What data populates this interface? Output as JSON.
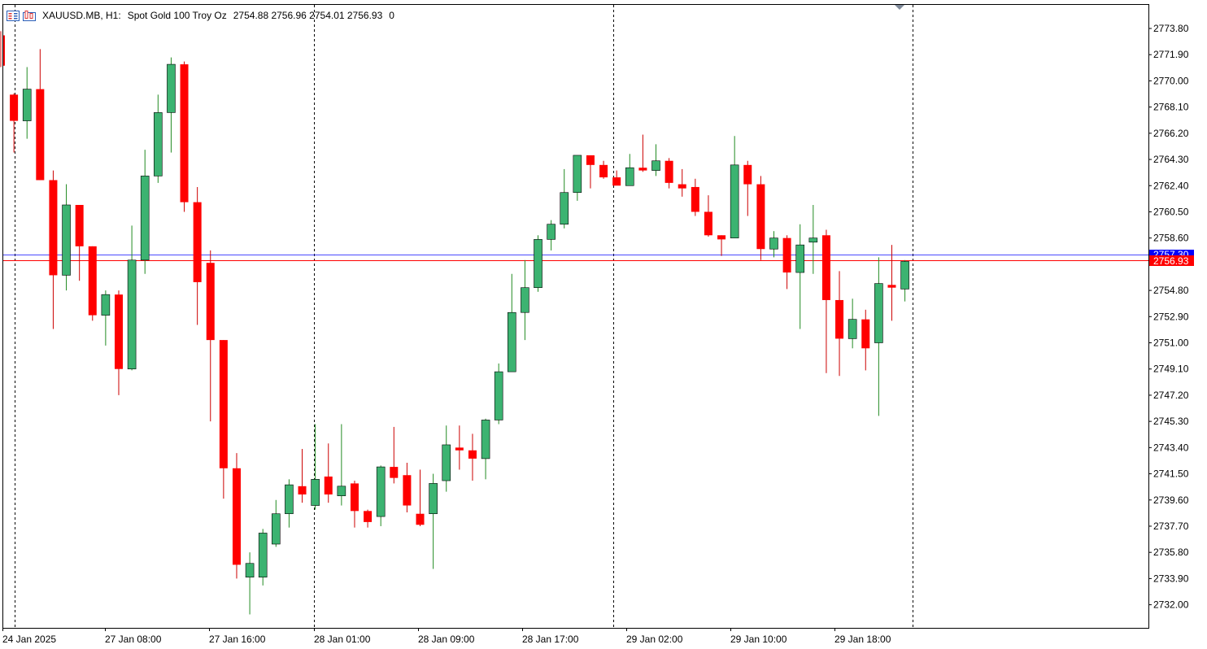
{
  "header": {
    "symbol": "XAUUSD.MB, H1:",
    "description": "Spot Gold 100 Troy Oz",
    "ohlc": "2754.88 2756.96 2754.01 2756.93",
    "volume": "0"
  },
  "price_labels": {
    "bid": "2757.30",
    "last": "2756.93",
    "bid_color": "#0000ff",
    "last_color": "#ff0000"
  },
  "colors": {
    "bull": "#3cb371",
    "bear": "#ff0000",
    "wick_bull": "#228b22",
    "wick_bear": "#cc0000",
    "grid": "#000000"
  },
  "chart_data": {
    "type": "candlestick",
    "y_ticks": [
      2773.8,
      2771.9,
      2770.0,
      2768.1,
      2766.2,
      2764.3,
      2762.4,
      2760.5,
      2758.6,
      2754.8,
      2752.9,
      2751.0,
      2749.1,
      2747.2,
      2745.3,
      2743.4,
      2741.5,
      2739.6,
      2737.7,
      2735.8,
      2733.9,
      2732.0
    ],
    "x_labels": [
      "24 Jan 2025",
      "27 Jan 08:00",
      "27 Jan 16:00",
      "28 Jan 01:00",
      "28 Jan 09:00",
      "28 Jan 17:00",
      "29 Jan 02:00",
      "29 Jan 10:00",
      "29 Jan 18:00"
    ],
    "ylim": [
      2731.2,
      2775.0
    ],
    "candles": [
      {
        "o": 2773.3,
        "h": 2773.6,
        "l": 2771.0,
        "c": 2771.1
      },
      {
        "o": 2769.0,
        "h": 2769.1,
        "l": 2764.8,
        "c": 2767.1
      },
      {
        "o": 2767.1,
        "h": 2771.0,
        "l": 2765.8,
        "c": 2769.4
      },
      {
        "o": 2769.4,
        "h": 2772.3,
        "l": 2762.8,
        "c": 2762.8
      },
      {
        "o": 2762.8,
        "h": 2763.5,
        "l": 2752.0,
        "c": 2755.9
      },
      {
        "o": 2755.9,
        "h": 2762.5,
        "l": 2754.8,
        "c": 2761.0
      },
      {
        "o": 2761.0,
        "h": 2761.0,
        "l": 2755.5,
        "c": 2758.0
      },
      {
        "o": 2758.0,
        "h": 2758.0,
        "l": 2752.6,
        "c": 2753.0
      },
      {
        "o": 2753.0,
        "h": 2754.8,
        "l": 2750.8,
        "c": 2754.5
      },
      {
        "o": 2754.5,
        "h": 2754.8,
        "l": 2747.2,
        "c": 2749.1
      },
      {
        "o": 2749.1,
        "h": 2759.5,
        "l": 2749.0,
        "c": 2757.0
      },
      {
        "o": 2757.0,
        "h": 2765.0,
        "l": 2756.0,
        "c": 2763.1
      },
      {
        "o": 2763.1,
        "h": 2769.0,
        "l": 2762.6,
        "c": 2767.7
      },
      {
        "o": 2767.7,
        "h": 2771.7,
        "l": 2764.8,
        "c": 2771.2
      },
      {
        "o": 2771.2,
        "h": 2771.4,
        "l": 2760.5,
        "c": 2761.2
      },
      {
        "o": 2761.2,
        "h": 2762.3,
        "l": 2752.3,
        "c": 2755.4
      },
      {
        "o": 2756.8,
        "h": 2757.7,
        "l": 2745.3,
        "c": 2751.2
      },
      {
        "o": 2751.2,
        "h": 2751.2,
        "l": 2739.7,
        "c": 2741.9
      },
      {
        "o": 2741.9,
        "h": 2743.0,
        "l": 2733.9,
        "c": 2734.9
      },
      {
        "o": 2734.0,
        "h": 2735.8,
        "l": 2731.3,
        "c": 2735.0
      },
      {
        "o": 2734.0,
        "h": 2737.5,
        "l": 2733.4,
        "c": 2737.2
      },
      {
        "o": 2736.4,
        "h": 2739.6,
        "l": 2736.2,
        "c": 2738.6
      },
      {
        "o": 2738.6,
        "h": 2741.1,
        "l": 2737.6,
        "c": 2740.7
      },
      {
        "o": 2740.6,
        "h": 2743.3,
        "l": 2739.4,
        "c": 2740.0
      },
      {
        "o": 2739.2,
        "h": 2745.1,
        "l": 2738.9,
        "c": 2741.1
      },
      {
        "o": 2741.3,
        "h": 2743.7,
        "l": 2739.4,
        "c": 2740.0
      },
      {
        "o": 2739.9,
        "h": 2745.1,
        "l": 2739.2,
        "c": 2740.6
      },
      {
        "o": 2740.8,
        "h": 2741.0,
        "l": 2737.6,
        "c": 2738.8
      },
      {
        "o": 2738.8,
        "h": 2738.9,
        "l": 2737.6,
        "c": 2738.0
      },
      {
        "o": 2738.4,
        "h": 2742.1,
        "l": 2737.7,
        "c": 2742.0
      },
      {
        "o": 2742.0,
        "h": 2744.9,
        "l": 2740.8,
        "c": 2741.2
      },
      {
        "o": 2741.4,
        "h": 2742.3,
        "l": 2738.7,
        "c": 2739.2
      },
      {
        "o": 2738.6,
        "h": 2741.8,
        "l": 2737.7,
        "c": 2737.8
      },
      {
        "o": 2738.6,
        "h": 2741.5,
        "l": 2734.6,
        "c": 2740.8
      },
      {
        "o": 2741.0,
        "h": 2745.0,
        "l": 2740.2,
        "c": 2743.6
      },
      {
        "o": 2743.4,
        "h": 2745.0,
        "l": 2741.8,
        "c": 2743.2
      },
      {
        "o": 2743.2,
        "h": 2744.4,
        "l": 2741.0,
        "c": 2742.6
      },
      {
        "o": 2742.6,
        "h": 2745.5,
        "l": 2741.1,
        "c": 2745.4
      },
      {
        "o": 2745.4,
        "h": 2749.5,
        "l": 2745.1,
        "c": 2748.9
      },
      {
        "o": 2748.9,
        "h": 2756.0,
        "l": 2748.9,
        "c": 2753.2
      },
      {
        "o": 2753.2,
        "h": 2757.0,
        "l": 2751.2,
        "c": 2755.0
      },
      {
        "o": 2755.0,
        "h": 2758.8,
        "l": 2754.7,
        "c": 2758.5
      },
      {
        "o": 2758.5,
        "h": 2759.9,
        "l": 2757.7,
        "c": 2759.6
      },
      {
        "o": 2759.6,
        "h": 2763.6,
        "l": 2759.3,
        "c": 2761.9
      },
      {
        "o": 2761.9,
        "h": 2764.6,
        "l": 2761.3,
        "c": 2764.6
      },
      {
        "o": 2764.6,
        "h": 2764.6,
        "l": 2762.2,
        "c": 2763.9
      },
      {
        "o": 2763.9,
        "h": 2764.2,
        "l": 2762.9,
        "c": 2763.0
      },
      {
        "o": 2763.0,
        "h": 2763.5,
        "l": 2762.5,
        "c": 2762.4
      },
      {
        "o": 2762.4,
        "h": 2764.7,
        "l": 2762.4,
        "c": 2763.7
      },
      {
        "o": 2763.7,
        "h": 2766.1,
        "l": 2763.4,
        "c": 2763.5
      },
      {
        "o": 2763.5,
        "h": 2765.4,
        "l": 2763.1,
        "c": 2764.2
      },
      {
        "o": 2764.2,
        "h": 2764.4,
        "l": 2762.2,
        "c": 2762.6
      },
      {
        "o": 2762.5,
        "h": 2763.6,
        "l": 2761.6,
        "c": 2762.2
      },
      {
        "o": 2762.3,
        "h": 2762.9,
        "l": 2760.2,
        "c": 2760.5
      },
      {
        "o": 2760.5,
        "h": 2761.7,
        "l": 2758.7,
        "c": 2758.8
      },
      {
        "o": 2758.8,
        "h": 2758.8,
        "l": 2757.3,
        "c": 2758.5
      },
      {
        "o": 2758.6,
        "h": 2766.0,
        "l": 2758.6,
        "c": 2763.9
      },
      {
        "o": 2763.9,
        "h": 2764.2,
        "l": 2760.2,
        "c": 2762.5
      },
      {
        "o": 2762.5,
        "h": 2763.1,
        "l": 2757.0,
        "c": 2757.8
      },
      {
        "o": 2757.8,
        "h": 2759.1,
        "l": 2757.2,
        "c": 2758.6
      },
      {
        "o": 2758.6,
        "h": 2758.8,
        "l": 2754.9,
        "c": 2756.1
      },
      {
        "o": 2756.1,
        "h": 2759.6,
        "l": 2752.0,
        "c": 2758.1
      },
      {
        "o": 2758.3,
        "h": 2761.0,
        "l": 2756.0,
        "c": 2758.6
      },
      {
        "o": 2758.8,
        "h": 2759.2,
        "l": 2748.8,
        "c": 2754.1
      },
      {
        "o": 2754.1,
        "h": 2756.2,
        "l": 2748.6,
        "c": 2751.3
      },
      {
        "o": 2751.3,
        "h": 2754.2,
        "l": 2750.6,
        "c": 2752.7
      },
      {
        "o": 2752.7,
        "h": 2753.4,
        "l": 2749.0,
        "c": 2750.6
      },
      {
        "o": 2751.0,
        "h": 2757.2,
        "l": 2745.7,
        "c": 2755.3
      },
      {
        "o": 2755.2,
        "h": 2758.1,
        "l": 2752.6,
        "c": 2755.0
      },
      {
        "o": 2754.9,
        "h": 2757.0,
        "l": 2754.0,
        "c": 2756.9
      }
    ]
  }
}
